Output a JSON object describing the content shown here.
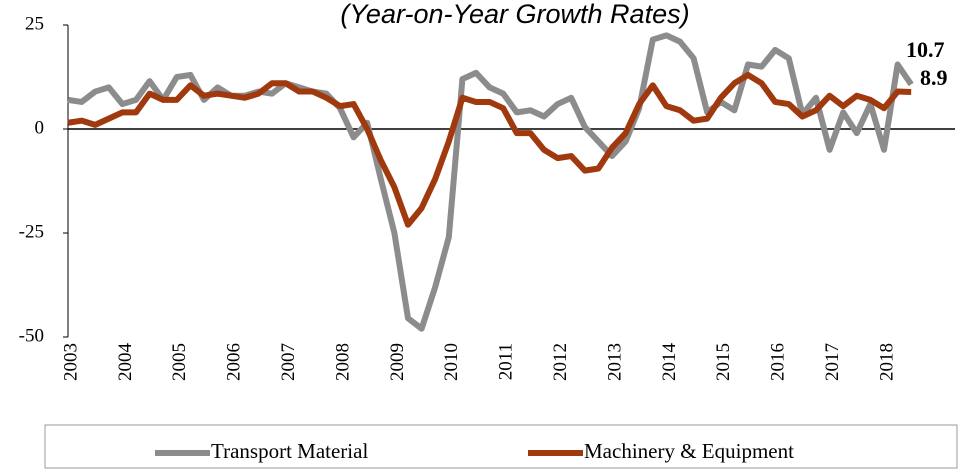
{
  "chart_data": {
    "type": "line",
    "title": "(Year-on-Year Growth Rates)",
    "categories": [
      "2003",
      null,
      null,
      null,
      "2004",
      null,
      null,
      null,
      "2005",
      null,
      null,
      null,
      "2006",
      null,
      null,
      null,
      "2007",
      null,
      null,
      null,
      "2008",
      null,
      null,
      null,
      "2009",
      null,
      null,
      null,
      "2010",
      null,
      null,
      null,
      "2011",
      null,
      null,
      null,
      "2012",
      null,
      null,
      null,
      "2013",
      null,
      null,
      null,
      "2014",
      null,
      null,
      null,
      "2015",
      null,
      null,
      null,
      "2016",
      null,
      null,
      null,
      "2017",
      null,
      null,
      null,
      "2018",
      null,
      null
    ],
    "series": [
      {
        "name": "Transport Material",
        "color": "#8c8c8c",
        "values": [
          7,
          6.5,
          9,
          10,
          6,
          7,
          11.5,
          7,
          12.5,
          13,
          7,
          10,
          8,
          8,
          9,
          8.5,
          11,
          10,
          9,
          8.5,
          5,
          -2,
          1.5,
          -12,
          -25,
          -45.5,
          -48,
          -38,
          -26,
          12,
          13.5,
          10,
          8.5,
          4,
          4.5,
          3,
          6,
          7.5,
          0.5,
          -3,
          -6.5,
          -3,
          5,
          21.5,
          22.5,
          21,
          17,
          4,
          6.5,
          4.5,
          15.5,
          15,
          19,
          17,
          3.5,
          7.5,
          -5,
          4,
          -1,
          6,
          -5,
          15.5,
          10.7
        ]
      },
      {
        "name": "Machinery & Equipment",
        "color": "#a0390e",
        "values": [
          1.5,
          2,
          1,
          2.5,
          4,
          4,
          8.5,
          7,
          7,
          10.5,
          8,
          8.5,
          8,
          7.5,
          8.5,
          11,
          11,
          9,
          9,
          7.5,
          5.5,
          6,
          0,
          -7.5,
          -14,
          -23,
          -19,
          -12,
          -3,
          7.5,
          6.5,
          6.5,
          5,
          -1,
          -1,
          -5,
          -7,
          -6.5,
          -10,
          -9.5,
          -4.5,
          -1,
          6,
          10.5,
          5.5,
          4.5,
          2,
          2.5,
          7.5,
          11,
          13,
          11,
          6.5,
          6,
          3,
          4.5,
          8,
          5.5,
          8,
          7,
          5,
          9,
          8.9
        ]
      }
    ],
    "ylim": [
      -50,
      25
    ],
    "yticks": [
      -50,
      -25,
      0,
      25
    ]
  }
}
